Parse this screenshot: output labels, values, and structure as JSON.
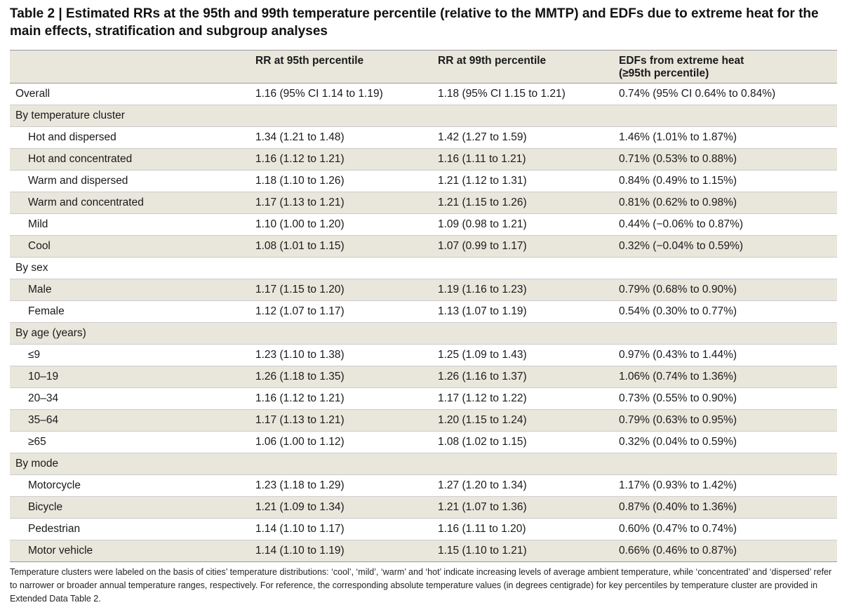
{
  "title": "Table 2 | Estimated RRs at the 95th and 99th temperature percentile (relative to the MMTP) and EDFs due to extreme heat for the main effects, stratification and subgroup analyses",
  "headers": [
    "",
    "RR at 95th percentile",
    "RR at 99th percentile",
    "EDFs from extreme heat",
    "(≥95th percentile)"
  ],
  "rows": [
    {
      "label": "Overall",
      "rr95": "1.16 (95% CI 1.14 to 1.19)",
      "rr99": "1.18 (95% CI 1.15 to 1.21)",
      "edf": "0.74% (95% CI 0.64% to 0.84%)"
    },
    {
      "label": "By temperature cluster",
      "rr95": "",
      "rr99": "",
      "edf": ""
    },
    {
      "label": "Hot and dispersed",
      "rr95": "1.34 (1.21 to 1.48)",
      "rr99": "1.42 (1.27 to 1.59)",
      "edf": "1.46% (1.01% to 1.87%)"
    },
    {
      "label": "Hot and concentrated",
      "rr95": "1.16 (1.12 to 1.21)",
      "rr99": "1.16 (1.11 to 1.21)",
      "edf": "0.71% (0.53% to 0.88%)"
    },
    {
      "label": "Warm and dispersed",
      "rr95": "1.18 (1.10 to 1.26)",
      "rr99": "1.21 (1.12 to 1.31)",
      "edf": "0.84% (0.49% to 1.15%)"
    },
    {
      "label": "Warm and concentrated",
      "rr95": "1.17 (1.13 to 1.21)",
      "rr99": "1.21 (1.15 to 1.26)",
      "edf": "0.81% (0.62% to 0.98%)"
    },
    {
      "label": "Mild",
      "rr95": "1.10 (1.00 to 1.20)",
      "rr99": "1.09 (0.98 to 1.21)",
      "edf": "0.44% (−0.06% to 0.87%)"
    },
    {
      "label": "Cool",
      "rr95": "1.08 (1.01 to 1.15)",
      "rr99": "1.07 (0.99 to 1.17)",
      "edf": "0.32% (−0.04% to 0.59%)"
    },
    {
      "label": "By sex",
      "rr95": "",
      "rr99": "",
      "edf": ""
    },
    {
      "label": "Male",
      "rr95": "1.17 (1.15 to 1.20)",
      "rr99": "1.19 (1.16 to 1.23)",
      "edf": "0.79% (0.68% to 0.90%)"
    },
    {
      "label": "Female",
      "rr95": "1.12 (1.07 to 1.17)",
      "rr99": "1.13 (1.07 to 1.19)",
      "edf": "0.54% (0.30% to 0.77%)"
    },
    {
      "label": "By age (years)",
      "rr95": "",
      "rr99": "",
      "edf": ""
    },
    {
      "label": "≤9",
      "rr95": "1.23 (1.10 to 1.38)",
      "rr99": "1.25 (1.09 to 1.43)",
      "edf": "0.97% (0.43% to 1.44%)"
    },
    {
      "label": "10–19",
      "rr95": "1.26 (1.18 to 1.35)",
      "rr99": "1.26 (1.16 to 1.37)",
      "edf": "1.06% (0.74% to 1.36%)"
    },
    {
      "label": "20–34",
      "rr95": "1.16 (1.12 to 1.21)",
      "rr99": "1.17 (1.12 to 1.22)",
      "edf": "0.73% (0.55% to 0.90%)"
    },
    {
      "label": "35–64",
      "rr95": "1.17 (1.13 to 1.21)",
      "rr99": "1.20 (1.15 to 1.24)",
      "edf": "0.79% (0.63% to 0.95%)"
    },
    {
      "label": "≥65",
      "rr95": "1.06 (1.00 to 1.12)",
      "rr99": "1.08 (1.02 to 1.15)",
      "edf": "0.32% (0.04% to 0.59%)"
    },
    {
      "label": "By mode",
      "rr95": "",
      "rr99": "",
      "edf": ""
    },
    {
      "label": "Motorcycle",
      "rr95": "1.23 (1.18 to 1.29)",
      "rr99": "1.27 (1.20 to 1.34)",
      "edf": "1.17% (0.93% to 1.42%)"
    },
    {
      "label": "Bicycle",
      "rr95": "1.21 (1.09 to 1.34)",
      "rr99": "1.21 (1.07 to 1.36)",
      "edf": "0.87% (0.40% to 1.36%)"
    },
    {
      "label": "Pedestrian",
      "rr95": "1.14 (1.10 to 1.17)",
      "rr99": "1.16 (1.11 to 1.20)",
      "edf": "0.60% (0.47% to 0.74%)"
    },
    {
      "label": "Motor vehicle",
      "rr95": "1.14 (1.10 to 1.19)",
      "rr99": "1.15 (1.10 to 1.21)",
      "edf": "0.66% (0.46% to 0.87%)"
    }
  ],
  "footnote": "Temperature clusters were labeled on the basis of cities’ temperature distributions: ‘cool’, ‘mild’, ‘warm’ and ‘hot’ indicate increasing levels of average ambient temperature, while ‘concentrated’ and ‘dispersed’ refer to narrower or broader annual temperature ranges, respectively. For reference, the corresponding absolute temperature values (in degrees centigrade) for key percentiles by temperature cluster are provided in Extended Data Table 2.",
  "colors": {
    "shade": "#e9e6dc",
    "rule": "#999999"
  }
}
